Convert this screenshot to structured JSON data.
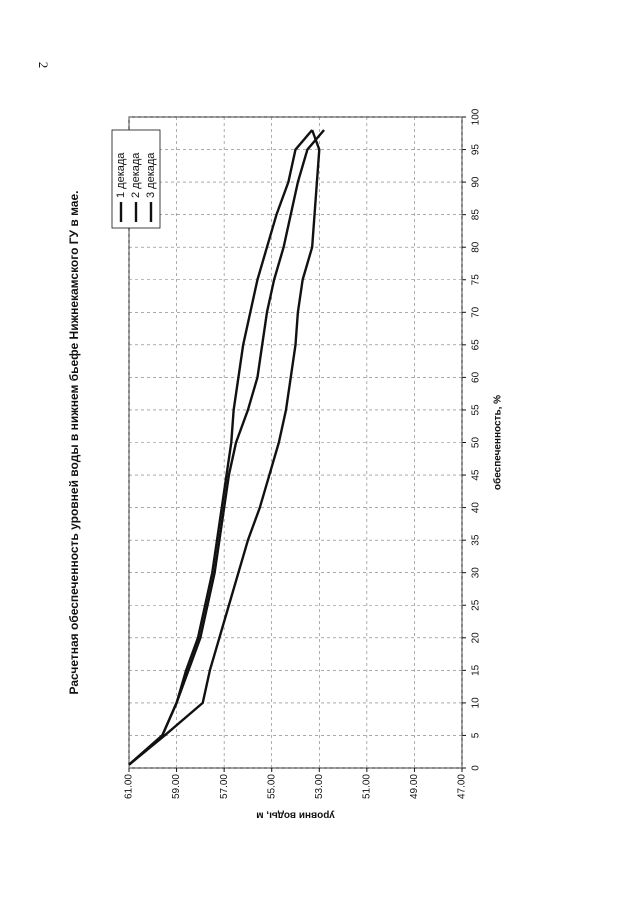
{
  "page_number": "2",
  "chart_data": {
    "type": "line",
    "title": "Расчетная обеспеченность уровней воды в нижнем бьефе Нижнекамского ГУ в мае.",
    "x_label": "обеспеченность, %",
    "y_label": "уровни воды, м",
    "x": [
      0.5,
      5,
      10,
      15,
      20,
      25,
      30,
      35,
      40,
      45,
      50,
      55,
      60,
      65,
      70,
      75,
      80,
      85,
      90,
      95,
      98
    ],
    "series": [
      {
        "name": "1 декада",
        "color": "#111111",
        "values": [
          61.0,
          59.6,
          59.0,
          58.6,
          58.1,
          57.8,
          57.5,
          57.3,
          57.1,
          56.9,
          56.7,
          56.6,
          56.4,
          56.2,
          55.9,
          55.6,
          55.2,
          54.8,
          54.3,
          54.0,
          53.3
        ]
      },
      {
        "name": "2 декада",
        "color": "#111111",
        "values": [
          61.0,
          59.6,
          59.0,
          58.5,
          58.0,
          57.7,
          57.4,
          57.2,
          57.0,
          56.8,
          56.5,
          56.0,
          55.6,
          55.4,
          55.2,
          54.9,
          54.5,
          54.2,
          53.9,
          53.5,
          52.8
        ]
      },
      {
        "name": "3 декада",
        "color": "#111111",
        "values": [
          61.0,
          59.5,
          57.9,
          57.6,
          57.2,
          56.8,
          56.4,
          56.0,
          55.5,
          55.1,
          54.7,
          54.4,
          54.2,
          54.0,
          53.9,
          53.7,
          53.3,
          53.2,
          53.1,
          53.0,
          53.3
        ]
      }
    ],
    "xlim": [
      0,
      100
    ],
    "xticks": [
      0,
      5,
      10,
      15,
      20,
      25,
      30,
      35,
      40,
      45,
      50,
      55,
      60,
      65,
      70,
      75,
      80,
      85,
      90,
      95,
      100
    ],
    "ylim": [
      47,
      61
    ],
    "yticks": [
      {
        "value": 47,
        "label": "47.00"
      },
      {
        "value": 49,
        "label": "49.00"
      },
      {
        "value": 51,
        "label": "51.00"
      },
      {
        "value": 53,
        "label": "53.00"
      },
      {
        "value": 55,
        "label": "55.00"
      },
      {
        "value": 57,
        "label": "57.00"
      },
      {
        "value": 59,
        "label": "59.00"
      },
      {
        "value": 61,
        "label": "61.00"
      }
    ],
    "grid": true
  }
}
